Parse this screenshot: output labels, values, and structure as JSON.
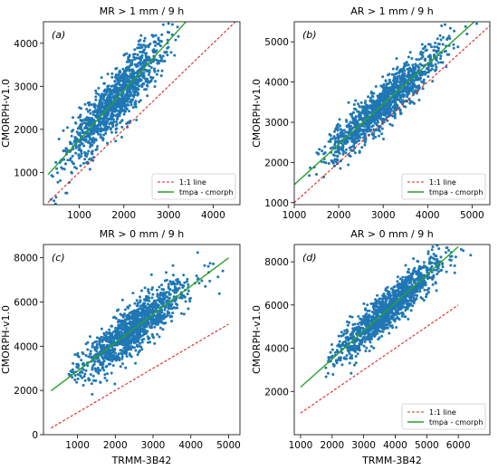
{
  "colors": {
    "points": "#1f77b4",
    "fit": "#2ca02c",
    "oneone": "#d62728"
  },
  "chart_data": [
    {
      "type": "scatter",
      "panel": "(a)",
      "title": "MR >  1 mm / 9 h",
      "xlabel": "",
      "ylabel": "CMORPH-v1.0",
      "xlim": [
        200,
        4600
      ],
      "ylim": [
        250,
        4500
      ],
      "xticks": [
        1000,
        2000,
        3000,
        4000
      ],
      "yticks": [
        1000,
        2000,
        3000,
        4000
      ],
      "point_cloud": {
        "n": 1300,
        "x_mean": 1800,
        "x_sd": 550,
        "x_min": 350,
        "x_max": 3900,
        "slope": 1.15,
        "intercept": 600,
        "noise_sd": 320
      },
      "fit_line": {
        "slope": 1.15,
        "intercept": 600,
        "x": [
          300,
          4600
        ]
      },
      "one_to_one": {
        "x": [
          300,
          4600
        ]
      },
      "legend": {
        "loc": "lower-right",
        "entries": [
          "1:1 line",
          "tmpa - cmorph"
        ]
      }
    },
    {
      "type": "scatter",
      "panel": "(b)",
      "title": "AR > 1 mm / 9 h",
      "xlabel": "",
      "ylabel": "CMORPH-v1.0",
      "xlim": [
        1000,
        5400
      ],
      "ylim": [
        950,
        5500
      ],
      "xticks": [
        1000,
        2000,
        3000,
        4000,
        5000
      ],
      "yticks": [
        1000,
        2000,
        3000,
        4000,
        5000
      ],
      "point_cloud": {
        "n": 1300,
        "x_mean": 3000,
        "x_sd": 650,
        "x_min": 1300,
        "x_max": 5200,
        "slope": 1.0,
        "intercept": 450,
        "noise_sd": 260
      },
      "fit_line": {
        "slope": 1.0,
        "intercept": 450,
        "x": [
          1000,
          5400
        ]
      },
      "one_to_one": {
        "x": [
          1000,
          5400
        ]
      },
      "legend": {
        "loc": "lower-right",
        "entries": [
          "1:1 line",
          "tmpa - cmorph"
        ]
      }
    },
    {
      "type": "scatter",
      "panel": "(c)",
      "title": "MR > 0 mm / 9 h",
      "xlabel": "TRMM-3B42",
      "ylabel": "CMORPH-v1.0",
      "xlim": [
        100,
        5300
      ],
      "ylim": [
        0,
        8600
      ],
      "xticks": [
        1000,
        2000,
        3000,
        4000,
        5000
      ],
      "yticks": [
        0,
        2000,
        4000,
        6000,
        8000
      ],
      "point_cloud": {
        "n": 1300,
        "x_mean": 2500,
        "x_sd": 700,
        "x_min": 700,
        "x_max": 5200,
        "slope": 1.28,
        "intercept": 1600,
        "noise_sd": 550
      },
      "fit_line": {
        "slope": 1.28,
        "intercept": 1600,
        "x": [
          300,
          5000
        ]
      },
      "one_to_one": {
        "x": [
          300,
          5000
        ]
      },
      "legend": null
    },
    {
      "type": "scatter",
      "panel": "(d)",
      "title": "AR > 0 mm / 9 h",
      "xlabel": "TRMM-3B42",
      "ylabel": "CMORPH-v1.0",
      "xlim": [
        800,
        7000
      ],
      "ylim": [
        0,
        8800
      ],
      "xticks": [
        1000,
        2000,
        3000,
        4000,
        5000,
        6000
      ],
      "yticks": [
        2000,
        4000,
        6000,
        8000
      ],
      "point_cloud": {
        "n": 1300,
        "x_mean": 3800,
        "x_sd": 850,
        "x_min": 1800,
        "x_max": 6500,
        "slope": 1.3,
        "intercept": 900,
        "noise_sd": 450
      },
      "fit_line": {
        "slope": 1.3,
        "intercept": 900,
        "x": [
          1000,
          6000
        ]
      },
      "one_to_one": {
        "x": [
          1000,
          6000
        ]
      },
      "legend": {
        "loc": "lower-right",
        "entries": [
          "1:1 line",
          "tmpa - cmorph"
        ]
      }
    }
  ]
}
